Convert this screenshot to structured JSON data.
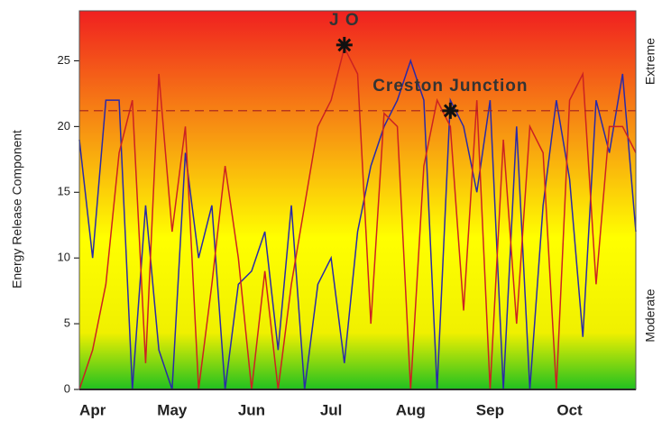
{
  "chart_data": {
    "type": "line",
    "y_label": "Energy Release Component",
    "right_labels": [
      "Extreme",
      "Moderate"
    ],
    "categories": [
      null,
      "Apr",
      null,
      null,
      null,
      null,
      null,
      "May",
      null,
      null,
      null,
      null,
      null,
      "Jun",
      null,
      null,
      null,
      null,
      null,
      "Jul",
      null,
      null,
      null,
      null,
      null,
      "Aug",
      null,
      null,
      null,
      null,
      null,
      "Sep",
      null,
      null,
      null,
      null,
      null,
      "Oct",
      null,
      null,
      null,
      null,
      null
    ],
    "series": [
      {
        "color": "#2a2aa8",
        "values": [
          19,
          10,
          22,
          22,
          0,
          14,
          3,
          0,
          18,
          10,
          14,
          0,
          8,
          9,
          12,
          3,
          14,
          0,
          8,
          10,
          2,
          12,
          17,
          20,
          22,
          25,
          22,
          0,
          22,
          20,
          15,
          22,
          0,
          20,
          0,
          14,
          22,
          16,
          4,
          22,
          18,
          24,
          12
        ]
      },
      {
        "color": "#cc2222",
        "values": [
          0,
          3,
          8,
          18,
          22,
          2,
          24,
          12,
          20,
          0,
          8,
          17,
          10,
          0,
          9,
          0,
          8,
          14,
          20,
          22,
          26,
          24,
          5,
          21,
          20,
          0,
          17,
          22,
          20,
          6,
          22,
          0,
          19,
          5,
          20,
          18,
          0,
          22,
          24,
          8,
          20,
          20,
          18
        ]
      }
    ],
    "threshold": 21.2,
    "markers": [
      {
        "label": "J O",
        "at": 20,
        "value": 26.2
      },
      {
        "label": "Creston Junction",
        "at": 28,
        "value": 21.2
      }
    ],
    "ylim": [
      0,
      28.8
    ],
    "yticks": [
      0,
      5,
      10,
      15,
      20,
      25
    ]
  }
}
